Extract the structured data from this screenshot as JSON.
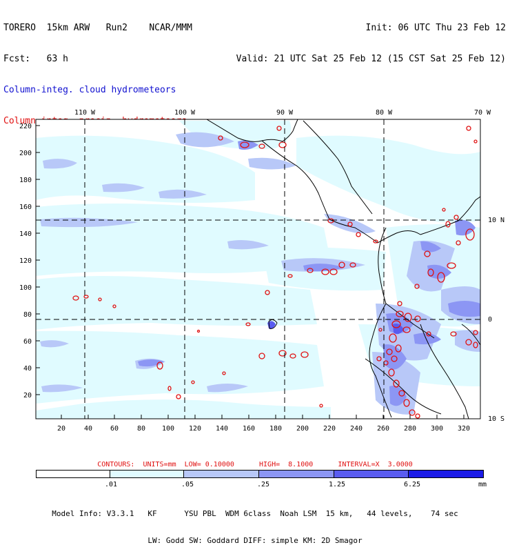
{
  "header": {
    "left_line1": "TORERO  15km ARW   Run2    NCAR/MMM",
    "left_line2": "Fcst:   63 h",
    "right_line1": "Init: 06 UTC Thu 23 Feb 12",
    "right_line2": "Valid: 21 UTC Sat 25 Feb 12 (15 CST Sat 25 Feb 12)",
    "legend_cloud": "Column-integ. cloud hydrometeors",
    "legend_precip": "Column-integ. precip. hydrometeors"
  },
  "colors": {
    "cloud_text": "#1010d0",
    "precip_text": "#e01010",
    "shade_1": "#e0fbff",
    "shade_2": "#b8c8f8",
    "shade_3": "#8c96f4",
    "shade_4": "#5a5cf0",
    "shade_5": "#1c1ce8",
    "contour": "#e01010"
  },
  "map": {
    "top_lon_labels": [
      "110 W",
      "100 W",
      "90 W",
      "80 W",
      "70 W"
    ],
    "right_lat_labels": [
      "10 N",
      "0",
      "10 S"
    ],
    "left_ticks": [
      "220",
      "200",
      "180",
      "160",
      "140",
      "120",
      "100",
      "80",
      "60",
      "40",
      "20"
    ],
    "bottom_ticks": [
      "20",
      "40",
      "60",
      "80",
      "100",
      "120",
      "140",
      "160",
      "180",
      "200",
      "220",
      "240",
      "260",
      "280",
      "300",
      "320"
    ]
  },
  "contour_info": "CONTOURS:  UNITS=mm  LOW= 0.10000      HIGH=  8.1000      INTERVAL=X  3.0000",
  "colorbar": {
    "labels": [
      ".01",
      ".05",
      ".25",
      "1.25",
      "6.25"
    ],
    "unit": "mm"
  },
  "footer": {
    "line1": "Model Info: V3.3.1   KF      YSU PBL  WDM 6class  Noah LSM  15 km,   44 levels,    74 sec",
    "line2": "LW: Godd SW: Goddard DIFF: simple KM: 2D Smagor"
  }
}
